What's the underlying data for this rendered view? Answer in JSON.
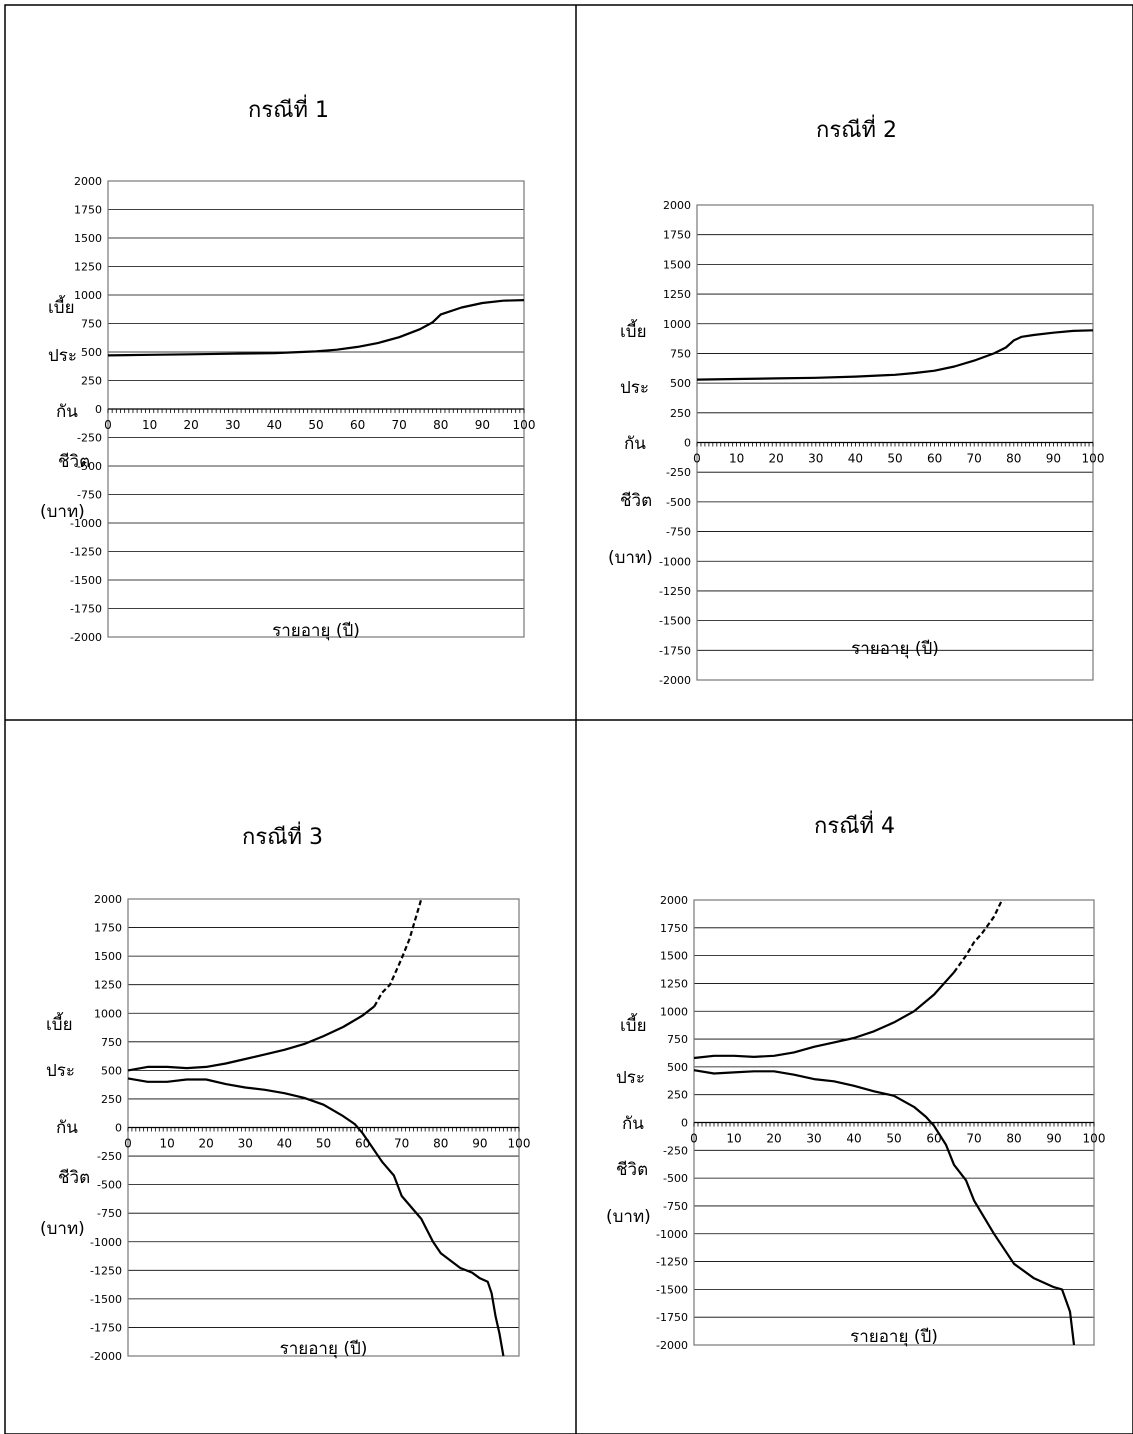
{
  "panels": [
    {
      "title": "กรณีที่ 1",
      "ylabel": [
        "เบี้ย",
        "ประ",
        "กัน",
        "ชีวิต",
        "(บาท)"
      ],
      "xlabel": "รายอายุ (ปี)"
    },
    {
      "title": "กรณีที่ 2",
      "ylabel": [
        "เบี้ย",
        "ประ",
        "กัน",
        "ชีวิต",
        "(บาท)"
      ],
      "xlabel": "รายอายุ (ปี)"
    },
    {
      "title": "กรณีที่ 3",
      "ylabel": [
        "เบี้ย",
        "ประ",
        "กัน",
        "ชีวิต",
        "(บาท)"
      ],
      "xlabel": "รายอายุ (ปี)"
    },
    {
      "title": "กรณีที่ 4",
      "ylabel": [
        "เบี้ย",
        "ประ",
        "กัน",
        "ชีวิต",
        "(บาท)"
      ],
      "xlabel": "รายอายุ (ปี)"
    }
  ],
  "chart_data": [
    {
      "type": "line",
      "title": "กรณีที่ 1",
      "xlabel": "รายอายุ (ปี)",
      "ylabel": "เบี้ยประกันชีวิต (บาท)",
      "xlim": [
        0,
        100
      ],
      "ylim": [
        -2000,
        2000
      ],
      "xticks": [
        0,
        10,
        20,
        30,
        40,
        50,
        60,
        70,
        80,
        90,
        100
      ],
      "yticks": [
        2000,
        1750,
        1500,
        1250,
        1000,
        750,
        500,
        250,
        0,
        -250,
        -500,
        -750,
        -1000,
        -1250,
        -1500,
        -1750,
        -2000
      ],
      "grid": true,
      "series": [
        {
          "style": "solid",
          "color": "#000000",
          "x": [
            0,
            10,
            20,
            30,
            40,
            50,
            55,
            60,
            65,
            70,
            75,
            78,
            80,
            85,
            90,
            95,
            100
          ],
          "y": [
            470,
            475,
            480,
            485,
            490,
            505,
            520,
            545,
            580,
            630,
            700,
            760,
            830,
            890,
            930,
            950,
            955
          ]
        }
      ]
    },
    {
      "type": "line",
      "title": "กรณีที่ 2",
      "xlabel": "รายอายุ (ปี)",
      "ylabel": "เบี้ยประกันชีวิต (บาท)",
      "xlim": [
        0,
        100
      ],
      "ylim": [
        -2000,
        2000
      ],
      "xticks": [
        0,
        10,
        20,
        30,
        40,
        50,
        60,
        70,
        80,
        90,
        100
      ],
      "yticks": [
        2000,
        1750,
        1500,
        1250,
        1000,
        750,
        500,
        250,
        0,
        -250,
        -500,
        -750,
        -1000,
        -1250,
        -1500,
        -1750,
        -2000
      ],
      "grid": true,
      "series": [
        {
          "style": "solid",
          "color": "#000000",
          "x": [
            0,
            10,
            20,
            30,
            40,
            50,
            55,
            60,
            65,
            70,
            75,
            78,
            80,
            82,
            85,
            90,
            95,
            100
          ],
          "y": [
            530,
            535,
            540,
            545,
            555,
            570,
            585,
            605,
            640,
            690,
            750,
            800,
            860,
            890,
            905,
            925,
            940,
            945
          ]
        }
      ]
    },
    {
      "type": "line",
      "title": "กรณีที่ 3",
      "xlabel": "รายอายุ (ปี)",
      "ylabel": "เบี้ยประกันชีวิต (บาท)",
      "xlim": [
        0,
        100
      ],
      "ylim": [
        -2000,
        2000
      ],
      "xticks": [
        0,
        10,
        20,
        30,
        40,
        50,
        60,
        70,
        80,
        90,
        100
      ],
      "yticks": [
        2000,
        1750,
        1500,
        1250,
        1000,
        750,
        500,
        250,
        0,
        -250,
        -500,
        -750,
        -1000,
        -1250,
        -1500,
        -1750,
        -2000
      ],
      "grid": true,
      "series": [
        {
          "style": "solid",
          "color": "#000000",
          "x": [
            0,
            5,
            10,
            15,
            20,
            25,
            30,
            35,
            40,
            45,
            50,
            55,
            60,
            63
          ],
          "y": [
            500,
            530,
            530,
            520,
            530,
            560,
            600,
            640,
            680,
            730,
            800,
            880,
            980,
            1060
          ]
        },
        {
          "style": "dashed",
          "color": "#000000",
          "x": [
            63,
            65,
            67,
            70,
            72,
            75
          ],
          "y": [
            1060,
            1180,
            1250,
            1480,
            1650,
            2000
          ]
        },
        {
          "style": "solid",
          "color": "#000000",
          "x": [
            0,
            5,
            10,
            15,
            20,
            25,
            30,
            35,
            40,
            45,
            50,
            55,
            58,
            60,
            62,
            65,
            68,
            70,
            75,
            78,
            80,
            85,
            88,
            90,
            92,
            93,
            94,
            95,
            96
          ],
          "y": [
            430,
            400,
            400,
            420,
            420,
            380,
            350,
            330,
            300,
            260,
            200,
            100,
            30,
            -50,
            -150,
            -300,
            -420,
            -600,
            -800,
            -1000,
            -1100,
            -1230,
            -1270,
            -1320,
            -1350,
            -1450,
            -1650,
            -1800,
            -2000
          ]
        }
      ]
    },
    {
      "type": "line",
      "title": "กรณีที่ 4",
      "xlabel": "รายอายุ (ปี)",
      "ylabel": "เบี้ยประกันชีวิต (บาท)",
      "xlim": [
        0,
        100
      ],
      "ylim": [
        -2000,
        2000
      ],
      "xticks": [
        0,
        10,
        20,
        30,
        40,
        50,
        60,
        70,
        80,
        90,
        100
      ],
      "yticks": [
        2000,
        1750,
        1500,
        1250,
        1000,
        750,
        500,
        250,
        0,
        -250,
        -500,
        -750,
        -1000,
        -1250,
        -1500,
        -1750,
        -2000
      ],
      "grid": true,
      "series": [
        {
          "style": "solid",
          "color": "#000000",
          "x": [
            0,
            5,
            10,
            15,
            20,
            25,
            30,
            35,
            40,
            45,
            50,
            55,
            60,
            65
          ],
          "y": [
            580,
            600,
            600,
            590,
            600,
            630,
            680,
            720,
            760,
            820,
            900,
            1000,
            1150,
            1350
          ]
        },
        {
          "style": "dashed",
          "color": "#000000",
          "x": [
            65,
            68,
            70,
            72,
            75,
            77
          ],
          "y": [
            1350,
            1500,
            1620,
            1700,
            1850,
            2000
          ]
        },
        {
          "style": "solid",
          "color": "#000000",
          "x": [
            0,
            5,
            10,
            15,
            20,
            25,
            30,
            35,
            40,
            45,
            50,
            55,
            58,
            60,
            63,
            65,
            68,
            70,
            75,
            80,
            85,
            90,
            92,
            94,
            95
          ],
          "y": [
            470,
            440,
            450,
            460,
            460,
            430,
            390,
            370,
            330,
            280,
            240,
            140,
            50,
            -30,
            -200,
            -380,
            -520,
            -700,
            -1000,
            -1270,
            -1400,
            -1480,
            -1500,
            -1700,
            -2000
          ]
        }
      ]
    }
  ]
}
